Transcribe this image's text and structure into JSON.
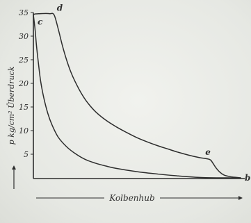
{
  "chart_data": {
    "type": "line",
    "title": "",
    "ylabel": "p kg/cm² Überdruck",
    "xlabel": "Kolbenhub",
    "ylim": [
      0,
      35
    ],
    "y_ticks": [
      5,
      10,
      15,
      20,
      25,
      30,
      35
    ],
    "x_ticks_visible": false,
    "xlim": [
      0,
      1
    ],
    "colors": {
      "ink": "#2d2d2d",
      "paper": "#e9ebe6"
    },
    "point_labels": {
      "c": {
        "label": "c",
        "x": 0.0,
        "y": 34.5
      },
      "d": {
        "label": "d",
        "x": 0.1,
        "y": 34.8
      },
      "e": {
        "label": "e",
        "x": 0.85,
        "y": 3.8
      },
      "b": {
        "label": "b",
        "x": 1.0,
        "y": 0.0
      }
    },
    "series": [
      {
        "values": [
          [
            0.0,
            34.5
          ],
          [
            0.003,
            34.6
          ],
          [
            0.01,
            34.7
          ],
          [
            0.03,
            34.75
          ],
          [
            0.06,
            34.8
          ],
          [
            0.08,
            34.75
          ],
          [
            0.1,
            34.5
          ],
          [
            0.12,
            31.5
          ],
          [
            0.14,
            28.0
          ],
          [
            0.16,
            25.0
          ],
          [
            0.18,
            22.5
          ],
          [
            0.2,
            20.5
          ],
          [
            0.23,
            18.0
          ],
          [
            0.26,
            16.0
          ],
          [
            0.3,
            14.0
          ],
          [
            0.35,
            12.2
          ],
          [
            0.4,
            10.8
          ],
          [
            0.45,
            9.6
          ],
          [
            0.5,
            8.5
          ],
          [
            0.55,
            7.6
          ],
          [
            0.6,
            6.8
          ],
          [
            0.65,
            6.1
          ],
          [
            0.7,
            5.4
          ],
          [
            0.75,
            4.8
          ],
          [
            0.8,
            4.3
          ],
          [
            0.85,
            3.9
          ],
          [
            0.865,
            3.2
          ],
          [
            0.88,
            2.2
          ],
          [
            0.9,
            1.2
          ],
          [
            0.92,
            0.6
          ],
          [
            0.95,
            0.25
          ],
          [
            0.98,
            0.1
          ],
          [
            1.0,
            0.0
          ]
        ]
      },
      {
        "values": [
          [
            1.0,
            0.0
          ],
          [
            0.9,
            0.0
          ],
          [
            0.8,
            0.1
          ],
          [
            0.7,
            0.4
          ],
          [
            0.6,
            0.8
          ],
          [
            0.5,
            1.3
          ],
          [
            0.4,
            2.0
          ],
          [
            0.35,
            2.5
          ],
          [
            0.3,
            3.1
          ],
          [
            0.25,
            3.9
          ],
          [
            0.2,
            5.2
          ],
          [
            0.16,
            6.6
          ],
          [
            0.12,
            8.6
          ],
          [
            0.09,
            11.2
          ],
          [
            0.07,
            13.6
          ],
          [
            0.05,
            17.0
          ],
          [
            0.035,
            20.5
          ],
          [
            0.025,
            24.0
          ],
          [
            0.015,
            28.0
          ],
          [
            0.008,
            31.5
          ],
          [
            0.0,
            34.5
          ]
        ]
      }
    ]
  }
}
